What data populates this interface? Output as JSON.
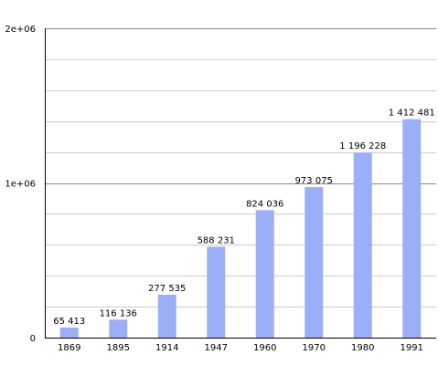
{
  "chart_data": {
    "type": "bar",
    "title": "",
    "xlabel": "",
    "ylabel": "",
    "categories": [
      "1869",
      "1895",
      "1914",
      "1947",
      "1960",
      "1970",
      "1980",
      "1991"
    ],
    "values": [
      65413,
      116136,
      277535,
      588231,
      824036,
      973075,
      1196228,
      1412481
    ],
    "data_labels": [
      "65 413",
      "116 136",
      "277 535",
      "588 231",
      "824 036",
      "973 075",
      "1 196 228",
      "1 412 481"
    ],
    "ylim": [
      0,
      2000000
    ],
    "y_ticks": [
      {
        "value": 0,
        "label": "0"
      },
      {
        "value": 1000000,
        "label": "1e+06"
      },
      {
        "value": 2000000,
        "label": "2e+06"
      }
    ],
    "minor_grid_step": 200000,
    "grid": true,
    "legend": "none",
    "colors": {
      "bar": "#9aaff7",
      "grid_major": "#888888",
      "grid_minor": "#cccccc",
      "axis": "#000000"
    }
  }
}
